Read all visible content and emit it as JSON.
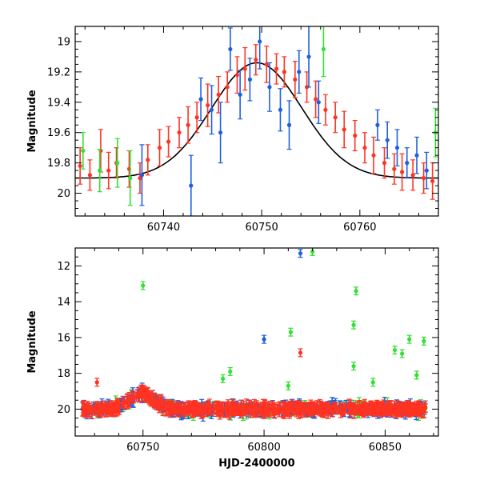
{
  "colors": {
    "red": "#ff3322",
    "blue": "#1f5fe0",
    "green": "#33e033",
    "model": "#000000"
  },
  "chart_data": [
    {
      "type": "scatter",
      "panel": "top",
      "title": "",
      "xlabel": "",
      "ylabel": "Magnitude",
      "xlim": [
        60731,
        60768
      ],
      "ylim": [
        20.15,
        18.9
      ],
      "inverted_y": true,
      "grid": false,
      "xticks": [
        60740,
        60750,
        60760
      ],
      "yticks": [
        19,
        19.2,
        19.4,
        19.6,
        19.8,
        20
      ],
      "model_curve": {
        "shape": "gaussian",
        "baseline": 19.9,
        "peak": 19.14,
        "center": 60749.5,
        "sigma": 4.6
      },
      "series": [
        {
          "color": "red",
          "x": [
            60731.5,
            60732.5,
            60733.6,
            60734.4,
            60735.2,
            60736.5,
            60737.6,
            60738.4,
            60739.6,
            60740.5,
            60741.6,
            60742.5,
            60743.4,
            60744.5,
            60745.6,
            60746.5,
            60747.5,
            60748.3,
            60749.4,
            60750.5,
            60751.5,
            60752.3,
            60753.4,
            60754.6,
            60755.5,
            60756.5,
            60757.5,
            60758.4,
            60759.5,
            60760.5,
            60761.4,
            60762.5,
            60763.5,
            60764.3,
            60765.4,
            60766.5,
            60767.4
          ],
          "y": [
            19.82,
            19.88,
            19.72,
            19.85,
            19.8,
            19.84,
            19.9,
            19.78,
            19.7,
            19.66,
            19.6,
            19.55,
            19.5,
            19.42,
            19.35,
            19.3,
            19.22,
            19.18,
            19.12,
            19.15,
            19.18,
            19.2,
            19.25,
            19.3,
            19.38,
            19.45,
            19.5,
            19.58,
            19.62,
            19.7,
            19.75,
            19.8,
            19.84,
            19.86,
            19.88,
            19.9,
            19.92
          ],
          "yerr": [
            0.12,
            0.1,
            0.14,
            0.12,
            0.1,
            0.12,
            0.1,
            0.1,
            0.12,
            0.1,
            0.1,
            0.12,
            0.1,
            0.14,
            0.12,
            0.1,
            0.12,
            0.14,
            0.1,
            0.12,
            0.1,
            0.1,
            0.12,
            0.1,
            0.12,
            0.1,
            0.1,
            0.12,
            0.1,
            0.1,
            0.12,
            0.1,
            0.1,
            0.12,
            0.1,
            0.1,
            0.12
          ]
        },
        {
          "color": "blue",
          "x": [
            60737.8,
            60742.8,
            60743.8,
            60744.9,
            60745.8,
            60746.8,
            60747.8,
            60748.8,
            60749.8,
            60750.8,
            60751.9,
            60752.8,
            60753.8,
            60754.8,
            60755.8,
            60761.8,
            60762.8,
            60763.8,
            60764.8,
            60765.8,
            60766.8
          ],
          "y": [
            19.88,
            19.95,
            19.38,
            19.45,
            19.6,
            19.05,
            19.35,
            19.25,
            19.0,
            19.3,
            19.45,
            19.55,
            19.2,
            19.1,
            19.4,
            19.55,
            19.65,
            19.7,
            19.8,
            19.75,
            19.85
          ],
          "yerr": [
            0.2,
            0.2,
            0.14,
            0.16,
            0.2,
            0.14,
            0.16,
            0.14,
            0.18,
            0.16,
            0.14,
            0.16,
            0.14,
            0.2,
            0.14,
            0.1,
            0.12,
            0.12,
            0.1,
            0.12,
            0.12
          ]
        },
        {
          "color": "green",
          "x": [
            60731.8,
            60733.5,
            60735.3,
            60736.6,
            60756.3,
            60767.7
          ],
          "y": [
            19.72,
            19.85,
            19.8,
            19.9,
            19.05,
            19.6
          ],
          "yerr": [
            0.12,
            0.14,
            0.16,
            0.18,
            0.18,
            0.16
          ]
        }
      ]
    },
    {
      "type": "scatter",
      "panel": "bottom",
      "title": "",
      "xlabel": "HJD-2400000",
      "ylabel": "Magnitude",
      "xlim": [
        60722,
        60872
      ],
      "ylim": [
        21.5,
        11
      ],
      "inverted_y": true,
      "grid": false,
      "xticks": [
        60750,
        60800,
        60850
      ],
      "yticks": [
        12,
        14,
        16,
        18,
        20
      ],
      "outliers": [
        {
          "color": "red",
          "x": 60731,
          "y": 18.5
        },
        {
          "color": "red",
          "x": 60815,
          "y": 16.85
        },
        {
          "color": "blue",
          "x": 60800,
          "y": 16.1
        },
        {
          "color": "blue",
          "x": 60815,
          "y": 11.3
        },
        {
          "color": "green",
          "x": 60750,
          "y": 13.1
        },
        {
          "color": "green",
          "x": 60811,
          "y": 15.7
        },
        {
          "color": "green",
          "x": 60810,
          "y": 18.7
        },
        {
          "color": "green",
          "x": 60820,
          "y": 11.2
        },
        {
          "color": "green",
          "x": 60838,
          "y": 13.4
        },
        {
          "color": "green",
          "x": 60837,
          "y": 15.3
        },
        {
          "color": "green",
          "x": 60837,
          "y": 17.6
        },
        {
          "color": "green",
          "x": 60854,
          "y": 16.7
        },
        {
          "color": "green",
          "x": 60857,
          "y": 16.9
        },
        {
          "color": "green",
          "x": 60860,
          "y": 16.1
        },
        {
          "color": "green",
          "x": 60863,
          "y": 18.1
        },
        {
          "color": "green",
          "x": 60866,
          "y": 16.2
        },
        {
          "color": "green",
          "x": 60783,
          "y": 18.3
        },
        {
          "color": "green",
          "x": 60786,
          "y": 17.9
        },
        {
          "color": "green",
          "x": 60845,
          "y": 18.5
        }
      ]
    }
  ]
}
